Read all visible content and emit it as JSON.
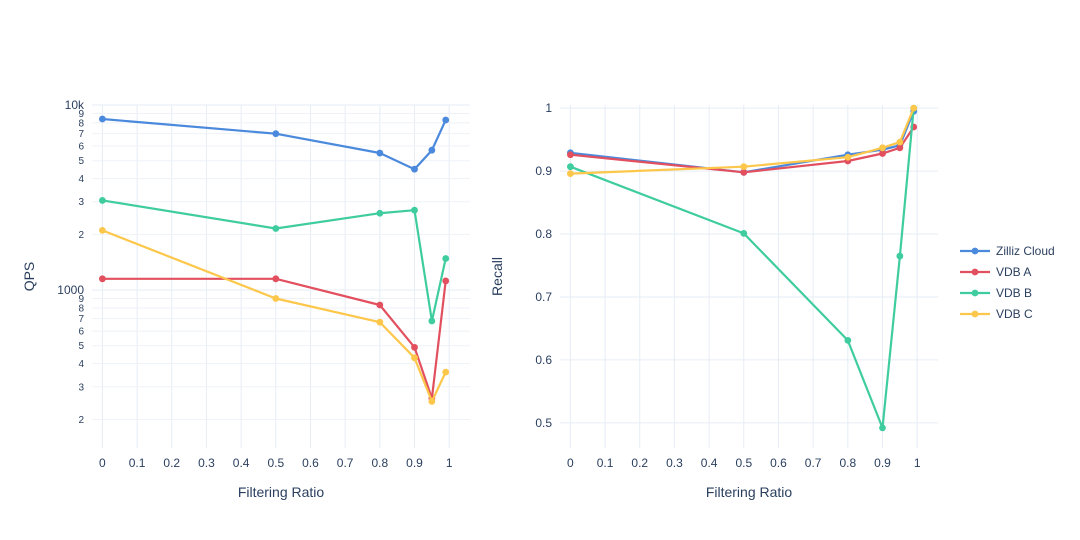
{
  "chart_data": [
    {
      "type": "line",
      "name": "qps",
      "xlabel": "Filtering Ratio",
      "ylabel": "QPS",
      "yscale": "log",
      "xlim": [
        -0.03,
        1.06
      ],
      "ylim": [
        140,
        10000
      ],
      "x_ticks": [
        "0",
        "0.1",
        "0.2",
        "0.3",
        "0.4",
        "0.5",
        "0.6",
        "0.7",
        "0.8",
        "0.9",
        "1"
      ],
      "y_major_ticks": [
        {
          "value": 1000,
          "label": "1000"
        },
        {
          "value": 10000,
          "label": "10k"
        }
      ],
      "y_minor_ticks": [
        {
          "value": 200,
          "label": "2"
        },
        {
          "value": 300,
          "label": "3"
        },
        {
          "value": 400,
          "label": "4"
        },
        {
          "value": 500,
          "label": "5"
        },
        {
          "value": 600,
          "label": "6"
        },
        {
          "value": 700,
          "label": "7"
        },
        {
          "value": 800,
          "label": "8"
        },
        {
          "value": 900,
          "label": "9"
        },
        {
          "value": 2000,
          "label": "2"
        },
        {
          "value": 3000,
          "label": "3"
        },
        {
          "value": 4000,
          "label": "4"
        },
        {
          "value": 5000,
          "label": "5"
        },
        {
          "value": 6000,
          "label": "6"
        },
        {
          "value": 7000,
          "label": "7"
        },
        {
          "value": 8000,
          "label": "8"
        },
        {
          "value": 9000,
          "label": "9"
        }
      ],
      "series": [
        {
          "name": "Zilliz Cloud",
          "x": [
            0,
            0.5,
            0.8,
            0.9,
            0.95,
            0.99
          ],
          "values": [
            8400,
            7000,
            5500,
            4500,
            5700,
            8300
          ]
        },
        {
          "name": "VDB A",
          "x": [
            0,
            0.5,
            0.8,
            0.9,
            0.95,
            0.99
          ],
          "values": [
            1150,
            1150,
            830,
            490,
            260,
            1120
          ]
        },
        {
          "name": "VDB B",
          "x": [
            0,
            0.5,
            0.8,
            0.9,
            0.95,
            0.99
          ],
          "values": [
            3050,
            2150,
            2600,
            2700,
            680,
            1480
          ]
        },
        {
          "name": "VDB C",
          "x": [
            0,
            0.5,
            0.8,
            0.9,
            0.95,
            0.99
          ],
          "values": [
            2100,
            900,
            670,
            430,
            250,
            360
          ]
        }
      ]
    },
    {
      "type": "line",
      "name": "recall",
      "xlabel": "Filtering Ratio",
      "ylabel": "Recall",
      "yscale": "linear",
      "xlim": [
        -0.03,
        1.06
      ],
      "ylim": [
        0.46,
        1.005
      ],
      "x_ticks": [
        "0",
        "0.1",
        "0.2",
        "0.3",
        "0.4",
        "0.5",
        "0.6",
        "0.7",
        "0.8",
        "0.9",
        "1"
      ],
      "y_ticks": [
        {
          "value": 0.5,
          "label": "0.5"
        },
        {
          "value": 0.6,
          "label": "0.6"
        },
        {
          "value": 0.7,
          "label": "0.7"
        },
        {
          "value": 0.8,
          "label": "0.8"
        },
        {
          "value": 0.9,
          "label": "0.9"
        },
        {
          "value": 1.0,
          "label": "1"
        }
      ],
      "series": [
        {
          "name": "Zilliz Cloud",
          "x": [
            0,
            0.5,
            0.8,
            0.9,
            0.95,
            0.99
          ],
          "values": [
            0.929,
            0.898,
            0.926,
            0.934,
            0.941,
            0.995
          ]
        },
        {
          "name": "VDB A",
          "x": [
            0,
            0.5,
            0.8,
            0.9,
            0.95,
            0.99
          ],
          "values": [
            0.926,
            0.898,
            0.916,
            0.928,
            0.937,
            0.97
          ]
        },
        {
          "name": "VDB B",
          "x": [
            0,
            0.5,
            0.8,
            0.9,
            0.95,
            0.99
          ],
          "values": [
            0.907,
            0.801,
            0.631,
            0.492,
            0.765,
            1.0
          ]
        },
        {
          "name": "VDB C",
          "x": [
            0,
            0.5,
            0.8,
            0.9,
            0.95,
            0.99
          ],
          "values": [
            0.896,
            0.907,
            0.922,
            0.937,
            0.946,
            1.0
          ]
        }
      ]
    }
  ],
  "legend": {
    "placement": "right",
    "items": [
      {
        "label": "Zilliz Cloud",
        "color": "#4a89dc"
      },
      {
        "label": "VDB A",
        "color": "#e2505f"
      },
      {
        "label": "VDB B",
        "color": "#3fcc9e"
      },
      {
        "label": "VDB C",
        "color": "#fcc74b"
      }
    ]
  }
}
